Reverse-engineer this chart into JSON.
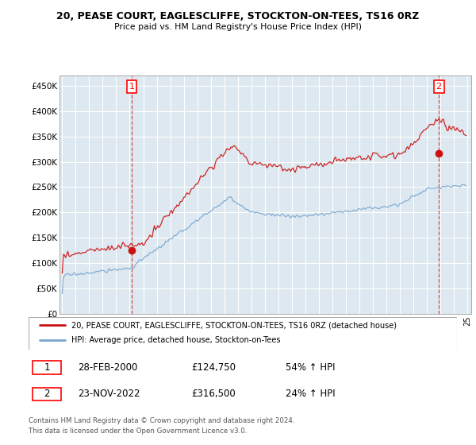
{
  "title": "20, PEASE COURT, EAGLESCLIFFE, STOCKTON-ON-TEES, TS16 0RZ",
  "subtitle": "Price paid vs. HM Land Registry's House Price Index (HPI)",
  "ylim": [
    0,
    470000
  ],
  "yticks": [
    0,
    50000,
    100000,
    150000,
    200000,
    250000,
    300000,
    350000,
    400000,
    450000
  ],
  "ytick_labels": [
    "£0",
    "£50K",
    "£100K",
    "£150K",
    "£200K",
    "£250K",
    "£300K",
    "£350K",
    "£400K",
    "£450K"
  ],
  "sale1_date": 2000.15,
  "sale1_price": 124750,
  "sale2_date": 2022.9,
  "sale2_price": 316500,
  "hpi_color": "#7aa7d0",
  "price_color": "#cc1111",
  "vline_color": "#cc3333",
  "bg_color": "#dde8f0",
  "legend_label1": "20, PEASE COURT, EAGLESCLIFFE, STOCKTON-ON-TEES, TS16 0RZ (detached house)",
  "legend_label2": "HPI: Average price, detached house, Stockton-on-Tees",
  "footer1": "Contains HM Land Registry data © Crown copyright and database right 2024.",
  "footer2": "This data is licensed under the Open Government Licence v3.0.",
  "table_row1": [
    "1",
    "28-FEB-2000",
    "£124,750",
    "54% ↑ HPI"
  ],
  "table_row2": [
    "2",
    "23-NOV-2022",
    "£316,500",
    "24% ↑ HPI"
  ]
}
